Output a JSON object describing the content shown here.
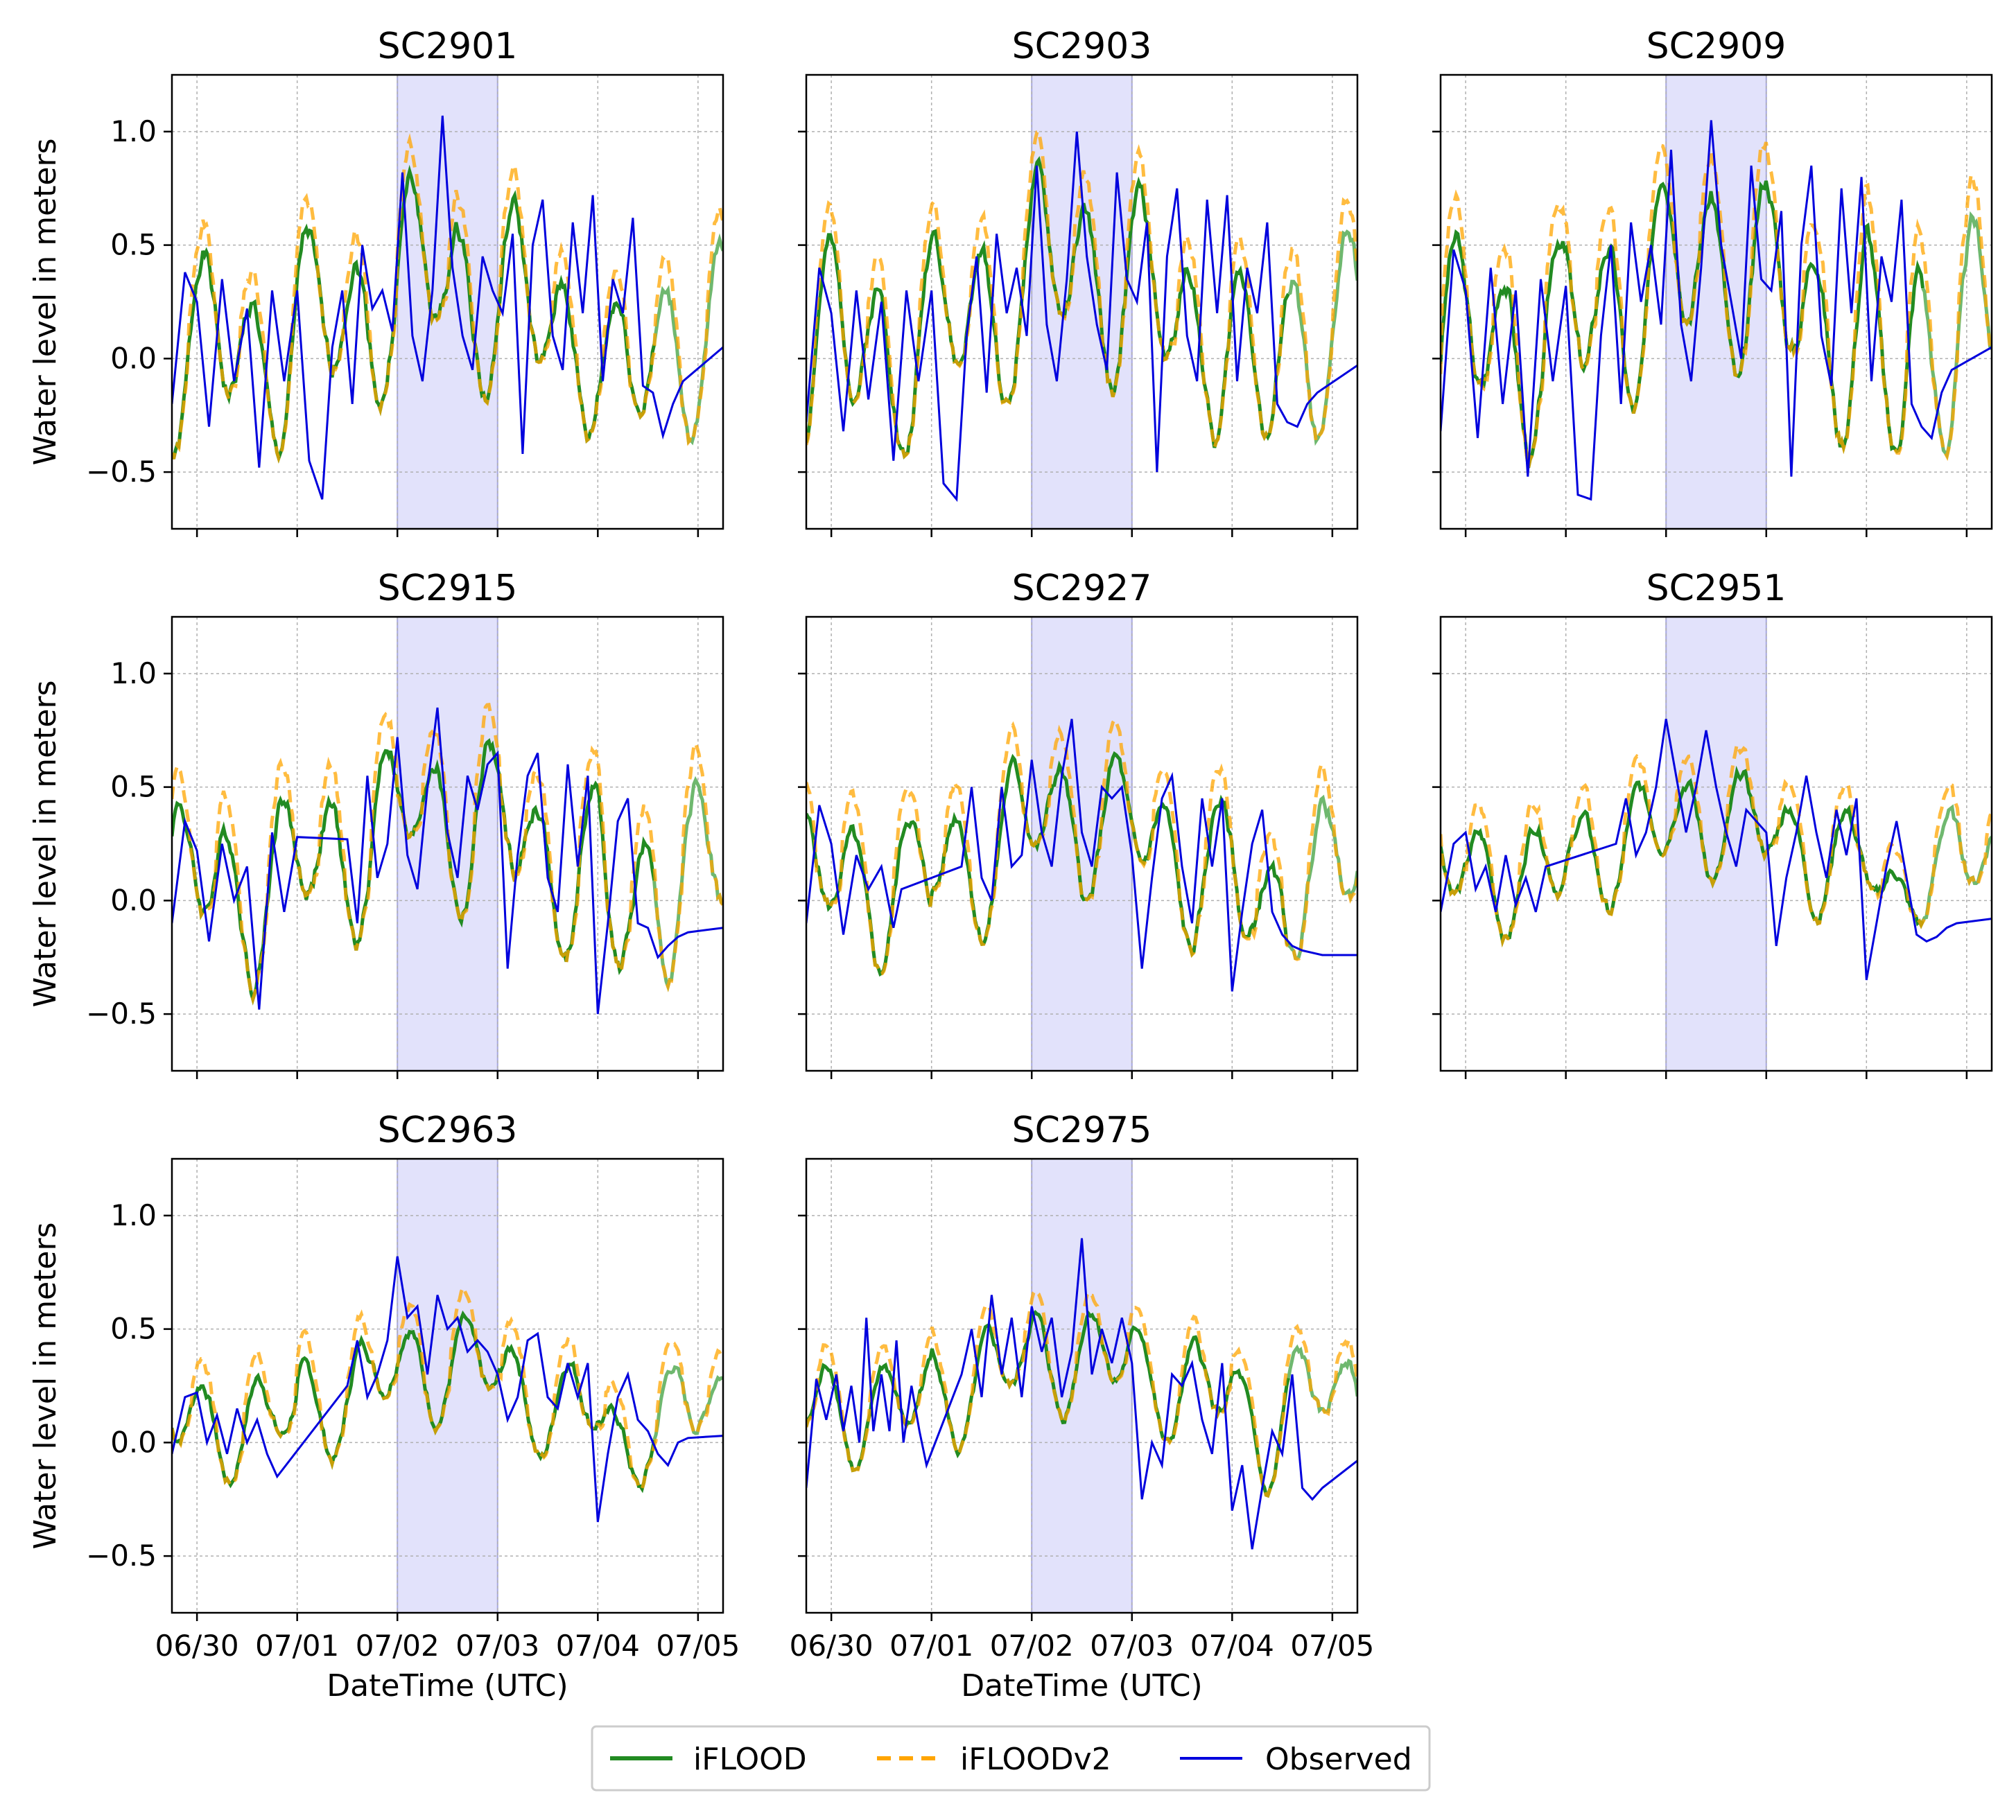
{
  "chart_data": {
    "type": "line",
    "x_tick_labels": [
      "06/30",
      "07/01",
      "07/02",
      "07/03",
      "07/04",
      "07/05"
    ],
    "y_tick_labels": [
      "1.0",
      "0.5",
      "0.0",
      "−0.5"
    ],
    "y_ticks": [
      1.0,
      0.5,
      0.0,
      -0.5
    ],
    "xlim": [
      -0.25,
      5.25
    ],
    "ylim": [
      -0.75,
      1.25
    ],
    "x_units": "days after 06/30 00:00 UTC",
    "highlight_span": [
      2,
      3
    ],
    "xlabel": "DateTime (UTC)",
    "ylabel": "Water level in meters",
    "grid": true,
    "legend_location": "bottom-center",
    "colors": {
      "iflood": "#228b22",
      "iflood_faded": "#6fb86f",
      "ifloodv2": "#ffa500",
      "observed": "#0000dd",
      "span": "#e2e2fb",
      "span_edge": "#a8a8e0"
    },
    "legend": [
      {
        "key": "iflood",
        "label": "iFLOOD",
        "style": "solid"
      },
      {
        "key": "ifloodv2",
        "label": "iFLOODv2",
        "style": "dashed"
      },
      {
        "key": "observed",
        "label": "Observed",
        "style": "solid"
      }
    ],
    "panels": [
      {
        "title": "SC2901",
        "ylabel": true,
        "xticklabels": false,
        "model": {
          "base": 0.08,
          "amp": 0.32,
          "damp": 0.18,
          "surge": 0.28,
          "fall": 0.3,
          "noise": 0.15,
          "v2": 0.12,
          "seed": 1
        },
        "observed": {
          "x": [
            -0.25,
            -0.12,
            0.0,
            0.12,
            0.25,
            0.37,
            0.5,
            0.62,
            0.75,
            0.87,
            1.0,
            1.12,
            1.25,
            1.35,
            1.45,
            1.55,
            1.65,
            1.75,
            1.85,
            1.95,
            2.05,
            2.15,
            2.25,
            2.35,
            2.45,
            2.55,
            2.65,
            2.75,
            2.85,
            2.95,
            3.05,
            3.15,
            3.25,
            3.35,
            3.45,
            3.55,
            3.65,
            3.75,
            3.85,
            3.95,
            4.05,
            4.15,
            4.25,
            4.35,
            4.45,
            4.55,
            4.65,
            4.75,
            4.85,
            5.25
          ],
          "y": [
            -0.2,
            0.38,
            0.25,
            -0.3,
            0.35,
            -0.1,
            0.22,
            -0.48,
            0.3,
            -0.1,
            0.3,
            -0.45,
            -0.62,
            0.05,
            0.3,
            -0.2,
            0.5,
            0.22,
            0.3,
            0.12,
            0.82,
            0.1,
            -0.1,
            0.3,
            1.07,
            0.4,
            0.1,
            -0.05,
            0.45,
            0.3,
            0.2,
            0.55,
            -0.42,
            0.5,
            0.7,
            0.1,
            -0.05,
            0.6,
            0.2,
            0.72,
            -0.1,
            0.35,
            0.2,
            0.62,
            -0.12,
            -0.15,
            -0.34,
            -0.2,
            -0.1,
            0.05
          ]
        }
      },
      {
        "title": "SC2903",
        "ylabel": false,
        "xticklabels": false,
        "model": {
          "base": 0.1,
          "amp": 0.34,
          "damp": 0.18,
          "surge": 0.3,
          "fall": 0.32,
          "noise": 0.15,
          "v2": 0.12,
          "seed": 2
        },
        "observed": {
          "x": [
            -0.25,
            -0.12,
            0.0,
            0.12,
            0.25,
            0.37,
            0.5,
            0.62,
            0.75,
            0.87,
            1.0,
            1.12,
            1.25,
            1.35,
            1.45,
            1.55,
            1.65,
            1.75,
            1.85,
            1.95,
            2.05,
            2.15,
            2.25,
            2.35,
            2.45,
            2.55,
            2.65,
            2.75,
            2.85,
            2.95,
            3.05,
            3.15,
            3.25,
            3.35,
            3.45,
            3.55,
            3.65,
            3.75,
            3.85,
            3.95,
            4.05,
            4.15,
            4.25,
            4.35,
            4.45,
            4.55,
            4.65,
            4.75,
            4.85,
            5.25
          ],
          "y": [
            -0.28,
            0.4,
            0.2,
            -0.32,
            0.3,
            -0.18,
            0.25,
            -0.45,
            0.3,
            -0.1,
            0.3,
            -0.55,
            -0.62,
            0.1,
            0.45,
            -0.15,
            0.55,
            0.2,
            0.4,
            0.1,
            0.85,
            0.15,
            -0.1,
            0.35,
            1.0,
            0.45,
            0.15,
            -0.05,
            0.82,
            0.35,
            0.25,
            0.6,
            -0.5,
            0.45,
            0.75,
            0.1,
            -0.1,
            0.7,
            0.2,
            0.72,
            -0.1,
            0.4,
            0.2,
            0.6,
            -0.2,
            -0.28,
            -0.3,
            -0.2,
            -0.15,
            -0.03
          ]
        }
      },
      {
        "title": "SC2909",
        "ylabel": false,
        "xticklabels": false,
        "model": {
          "base": 0.12,
          "amp": 0.36,
          "damp": 0.18,
          "surge": 0.32,
          "fall": 0.33,
          "noise": 0.16,
          "v2": 0.15,
          "seed": 3
        },
        "observed": {
          "x": [
            -0.25,
            -0.12,
            0.0,
            0.12,
            0.25,
            0.37,
            0.5,
            0.62,
            0.75,
            0.87,
            1.0,
            1.12,
            1.25,
            1.35,
            1.45,
            1.55,
            1.65,
            1.75,
            1.85,
            1.95,
            2.05,
            2.15,
            2.25,
            2.35,
            2.45,
            2.55,
            2.65,
            2.75,
            2.85,
            2.95,
            3.05,
            3.15,
            3.25,
            3.35,
            3.45,
            3.55,
            3.65,
            3.75,
            3.85,
            3.95,
            4.05,
            4.15,
            4.25,
            4.35,
            4.45,
            4.55,
            4.65,
            4.75,
            4.85,
            5.25
          ],
          "y": [
            -0.32,
            0.48,
            0.3,
            -0.35,
            0.4,
            -0.2,
            0.3,
            -0.52,
            0.35,
            -0.1,
            0.32,
            -0.6,
            -0.62,
            0.1,
            0.5,
            -0.2,
            0.6,
            0.25,
            0.5,
            0.15,
            0.92,
            0.15,
            -0.1,
            0.4,
            1.05,
            0.5,
            0.25,
            0.0,
            0.85,
            0.35,
            0.3,
            0.65,
            -0.52,
            0.5,
            0.85,
            0.1,
            -0.12,
            0.75,
            0.2,
            0.8,
            -0.1,
            0.45,
            0.25,
            0.7,
            -0.2,
            -0.3,
            -0.35,
            -0.15,
            -0.05,
            0.05
          ]
        }
      },
      {
        "title": "SC2915",
        "ylabel": true,
        "xticklabels": false,
        "model": {
          "base": 0.12,
          "amp": 0.28,
          "damp": 0.18,
          "surge": 0.28,
          "fall": 0.3,
          "noise": 0.14,
          "v2": 0.14,
          "seed": 4
        },
        "observed": {
          "x": [
            -0.25,
            -0.12,
            0.0,
            0.12,
            0.25,
            0.37,
            0.5,
            0.62,
            0.75,
            0.87,
            1.0,
            1.5,
            1.6,
            1.7,
            1.8,
            1.9,
            2.0,
            2.1,
            2.2,
            2.3,
            2.4,
            2.5,
            2.6,
            2.7,
            2.8,
            2.9,
            3.0,
            3.1,
            3.2,
            3.3,
            3.4,
            3.5,
            3.6,
            3.7,
            3.8,
            3.9,
            4.0,
            4.1,
            4.2,
            4.3,
            4.4,
            4.5,
            4.6,
            4.7,
            4.8,
            4.9,
            5.25
          ],
          "y": [
            -0.1,
            0.35,
            0.22,
            -0.18,
            0.25,
            0.0,
            0.15,
            -0.48,
            0.3,
            -0.05,
            0.28,
            0.27,
            -0.1,
            0.55,
            0.1,
            0.25,
            0.72,
            0.2,
            0.05,
            0.5,
            0.85,
            0.3,
            0.1,
            0.55,
            0.4,
            0.6,
            0.65,
            -0.3,
            0.2,
            0.55,
            0.65,
            0.1,
            -0.05,
            0.6,
            0.15,
            0.55,
            -0.5,
            -0.1,
            0.35,
            0.45,
            -0.1,
            -0.12,
            -0.25,
            -0.2,
            -0.16,
            -0.14,
            -0.12
          ]
        }
      },
      {
        "title": "SC2927",
        "ylabel": false,
        "xticklabels": false,
        "model": {
          "base": 0.12,
          "amp": 0.24,
          "damp": 0.15,
          "surge": 0.26,
          "fall": 0.25,
          "noise": 0.12,
          "v2": 0.13,
          "seed": 5
        },
        "observed": {
          "x": [
            -0.25,
            -0.12,
            0.0,
            0.12,
            0.25,
            0.37,
            0.5,
            0.62,
            0.7,
            1.3,
            1.4,
            1.5,
            1.6,
            1.7,
            1.8,
            1.9,
            2.0,
            2.1,
            2.2,
            2.3,
            2.4,
            2.5,
            2.6,
            2.7,
            2.8,
            2.9,
            3.0,
            3.1,
            3.2,
            3.3,
            3.4,
            3.5,
            3.6,
            3.7,
            3.8,
            3.9,
            4.0,
            4.1,
            4.2,
            4.3,
            4.4,
            4.5,
            4.6,
            4.7,
            4.8,
            4.9,
            5.25
          ],
          "y": [
            -0.1,
            0.42,
            0.25,
            -0.15,
            0.2,
            0.05,
            0.15,
            -0.12,
            0.05,
            0.15,
            0.5,
            0.1,
            0.0,
            0.5,
            0.15,
            0.2,
            0.62,
            0.3,
            0.15,
            0.55,
            0.8,
            0.3,
            0.15,
            0.5,
            0.45,
            0.5,
            0.2,
            -0.3,
            0.1,
            0.45,
            0.55,
            0.15,
            -0.1,
            0.45,
            0.15,
            0.45,
            -0.4,
            -0.05,
            0.25,
            0.4,
            -0.05,
            -0.15,
            -0.2,
            -0.22,
            -0.23,
            -0.24,
            -0.24
          ]
        }
      },
      {
        "title": "SC2951",
        "ylabel": false,
        "xticklabels": false,
        "model": {
          "base": 0.17,
          "amp": 0.18,
          "damp": 0.1,
          "surge": 0.2,
          "fall": 0.2,
          "noise": 0.1,
          "v2": 0.1,
          "seed": 6
        },
        "observed": {
          "x": [
            -0.25,
            -0.12,
            0.0,
            0.1,
            0.2,
            0.3,
            0.4,
            0.5,
            0.6,
            0.7,
            0.8,
            1.5,
            1.6,
            1.7,
            1.8,
            1.9,
            2.0,
            2.1,
            2.2,
            2.3,
            2.4,
            2.5,
            2.6,
            2.7,
            2.8,
            2.9,
            3.0,
            3.1,
            3.2,
            3.3,
            3.4,
            3.5,
            3.6,
            3.7,
            3.8,
            3.9,
            4.0,
            4.1,
            4.2,
            4.3,
            4.4,
            4.5,
            4.6,
            4.7,
            4.8,
            4.9,
            5.25
          ],
          "y": [
            -0.05,
            0.25,
            0.3,
            0.05,
            0.15,
            -0.05,
            0.2,
            -0.02,
            0.1,
            -0.05,
            0.15,
            0.25,
            0.45,
            0.2,
            0.3,
            0.5,
            0.8,
            0.55,
            0.3,
            0.5,
            0.75,
            0.5,
            0.3,
            0.15,
            0.4,
            0.35,
            0.3,
            -0.2,
            0.1,
            0.3,
            0.55,
            0.3,
            0.1,
            0.4,
            0.2,
            0.45,
            -0.35,
            -0.1,
            0.15,
            0.35,
            0.1,
            -0.15,
            -0.18,
            -0.16,
            -0.12,
            -0.1,
            -0.08
          ]
        }
      },
      {
        "title": "SC2963",
        "ylabel": true,
        "xticklabels": true,
        "model": {
          "base": 0.14,
          "amp": 0.17,
          "damp": 0.1,
          "surge": 0.22,
          "fall": 0.2,
          "noise": 0.09,
          "v2": 0.1,
          "seed": 7
        },
        "observed": {
          "x": [
            -0.25,
            -0.12,
            0.0,
            0.1,
            0.2,
            0.3,
            0.4,
            0.5,
            0.6,
            0.7,
            0.8,
            1.5,
            1.6,
            1.7,
            1.8,
            1.9,
            2.0,
            2.1,
            2.2,
            2.3,
            2.4,
            2.5,
            2.6,
            2.7,
            2.8,
            2.9,
            3.0,
            3.1,
            3.2,
            3.3,
            3.4,
            3.5,
            3.6,
            3.7,
            3.8,
            3.9,
            4.0,
            4.1,
            4.2,
            4.3,
            4.4,
            4.5,
            4.6,
            4.7,
            4.8,
            4.9,
            5.25
          ],
          "y": [
            -0.05,
            0.2,
            0.22,
            0.0,
            0.12,
            -0.05,
            0.15,
            0.0,
            0.1,
            -0.05,
            -0.15,
            0.25,
            0.45,
            0.2,
            0.3,
            0.45,
            0.82,
            0.55,
            0.6,
            0.3,
            0.65,
            0.5,
            0.55,
            0.4,
            0.45,
            0.4,
            0.3,
            0.1,
            0.2,
            0.45,
            0.48,
            0.2,
            0.15,
            0.35,
            0.2,
            0.35,
            -0.35,
            -0.05,
            0.2,
            0.3,
            0.1,
            0.05,
            -0.05,
            -0.1,
            0.0,
            0.02,
            0.03
          ]
        }
      },
      {
        "title": "SC2975",
        "ylabel": false,
        "xticklabels": true,
        "model": {
          "base": 0.2,
          "amp": 0.18,
          "damp": 0.1,
          "surge": 0.2,
          "fall": 0.2,
          "noise": 0.09,
          "v2": 0.08,
          "seed": 8
        },
        "observed": {
          "x": [
            -0.25,
            -0.15,
            -0.05,
            0.05,
            0.12,
            0.2,
            0.28,
            0.35,
            0.42,
            0.5,
            0.58,
            0.65,
            0.72,
            0.8,
            0.88,
            0.95,
            1.3,
            1.4,
            1.5,
            1.6,
            1.7,
            1.8,
            1.9,
            2.0,
            2.1,
            2.2,
            2.3,
            2.4,
            2.5,
            2.6,
            2.7,
            2.8,
            2.9,
            3.0,
            3.1,
            3.2,
            3.3,
            3.4,
            3.5,
            3.6,
            3.7,
            3.8,
            3.9,
            4.0,
            4.1,
            4.2,
            4.3,
            4.4,
            4.5,
            4.6,
            4.7,
            4.8,
            4.9,
            5.25
          ],
          "y": [
            -0.2,
            0.28,
            0.1,
            0.3,
            0.05,
            0.25,
            0.0,
            0.55,
            0.05,
            0.3,
            0.05,
            0.45,
            0.0,
            0.25,
            0.05,
            -0.1,
            0.3,
            0.5,
            0.2,
            0.65,
            0.3,
            0.55,
            0.2,
            0.6,
            0.4,
            0.55,
            0.2,
            0.4,
            0.9,
            0.3,
            0.5,
            0.35,
            0.55,
            0.35,
            -0.25,
            0.0,
            -0.1,
            0.3,
            0.25,
            0.35,
            0.1,
            -0.05,
            0.35,
            -0.3,
            -0.1,
            -0.47,
            -0.2,
            0.05,
            -0.05,
            0.3,
            -0.2,
            -0.25,
            -0.2,
            -0.08
          ]
        }
      }
    ]
  }
}
